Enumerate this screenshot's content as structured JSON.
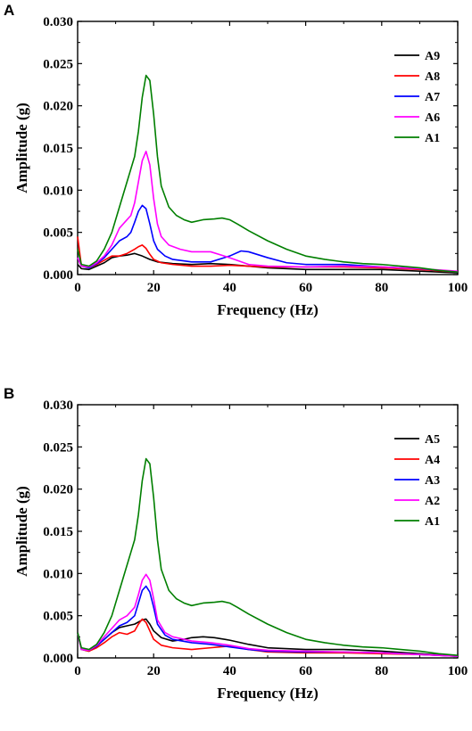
{
  "chart_data": [
    {
      "type": "line",
      "panel_label": "A",
      "xlabel": "Frequency  (Hz)",
      "ylabel": "Amplitude  (g)",
      "xlim": [
        0,
        100
      ],
      "ylim": [
        0,
        0.03
      ],
      "xticks": [
        0,
        20,
        40,
        60,
        80,
        100
      ],
      "yticks": [
        0.0,
        0.005,
        0.01,
        0.015,
        0.02,
        0.025,
        0.03
      ],
      "ytick_labels": [
        "0.000",
        "0.005",
        "0.010",
        "0.015",
        "0.020",
        "0.025",
        "0.030"
      ],
      "legend_position": "top-right",
      "series": [
        {
          "name": "A9",
          "color": "#000000",
          "x": [
            0,
            1,
            3,
            5,
            7,
            9,
            11,
            13,
            15,
            17,
            19,
            21,
            25,
            30,
            35,
            40,
            45,
            50,
            60,
            70,
            80,
            90,
            100
          ],
          "y": [
            0.0012,
            0.0007,
            0.0006,
            0.001,
            0.0014,
            0.002,
            0.0022,
            0.0023,
            0.0025,
            0.0022,
            0.0018,
            0.0015,
            0.0013,
            0.0012,
            0.0013,
            0.0012,
            0.001,
            0.0008,
            0.0006,
            0.0006,
            0.0006,
            0.0004,
            0.0002
          ]
        },
        {
          "name": "A8",
          "color": "#ff0000",
          "x": [
            0,
            1,
            3,
            5,
            7,
            9,
            11,
            13,
            15,
            16,
            17,
            18,
            19,
            20,
            22,
            25,
            30,
            35,
            40,
            45,
            50,
            60,
            70,
            80,
            90,
            100
          ],
          "y": [
            0.0045,
            0.001,
            0.0008,
            0.0012,
            0.0017,
            0.0022,
            0.0022,
            0.0025,
            0.003,
            0.0033,
            0.0035,
            0.0031,
            0.0024,
            0.0018,
            0.0014,
            0.0012,
            0.001,
            0.001,
            0.0011,
            0.001,
            0.0009,
            0.0009,
            0.0009,
            0.0008,
            0.0006,
            0.0003
          ]
        },
        {
          "name": "A7",
          "color": "#0000ff",
          "x": [
            0,
            1,
            3,
            5,
            7,
            9,
            11,
            13,
            14,
            15,
            16,
            17,
            18,
            19,
            20,
            21,
            23,
            25,
            30,
            35,
            40,
            43,
            45,
            50,
            55,
            60,
            70,
            80,
            90,
            100
          ],
          "y": [
            0.002,
            0.001,
            0.0008,
            0.0013,
            0.002,
            0.003,
            0.004,
            0.0045,
            0.005,
            0.0062,
            0.0075,
            0.0082,
            0.0078,
            0.006,
            0.004,
            0.003,
            0.0022,
            0.0018,
            0.0015,
            0.0015,
            0.0022,
            0.0028,
            0.0027,
            0.002,
            0.0014,
            0.0012,
            0.0012,
            0.0009,
            0.0007,
            0.0003
          ]
        },
        {
          "name": "A6",
          "color": "#ff00ff",
          "x": [
            0,
            1,
            3,
            5,
            7,
            9,
            11,
            13,
            14,
            15,
            16,
            17,
            18,
            19,
            20,
            21,
            22,
            24,
            27,
            30,
            35,
            40,
            45,
            50,
            60,
            70,
            80,
            90,
            100
          ],
          "y": [
            0.002,
            0.001,
            0.0009,
            0.0014,
            0.0022,
            0.0035,
            0.0055,
            0.0065,
            0.007,
            0.0085,
            0.011,
            0.0135,
            0.0146,
            0.013,
            0.009,
            0.006,
            0.0045,
            0.0035,
            0.003,
            0.0027,
            0.0027,
            0.002,
            0.0012,
            0.001,
            0.0009,
            0.001,
            0.0009,
            0.0007,
            0.0004
          ]
        },
        {
          "name": "A1",
          "color": "#007f00",
          "x": [
            0,
            1,
            3,
            5,
            7,
            9,
            11,
            13,
            14,
            15,
            16,
            17,
            18,
            19,
            20,
            21,
            22,
            24,
            26,
            28,
            30,
            33,
            36,
            38,
            40,
            42,
            45,
            50,
            55,
            60,
            65,
            70,
            75,
            80,
            85,
            90,
            95,
            100
          ],
          "y": [
            0.003,
            0.0012,
            0.001,
            0.0016,
            0.003,
            0.005,
            0.008,
            0.011,
            0.0125,
            0.014,
            0.017,
            0.021,
            0.0236,
            0.023,
            0.019,
            0.014,
            0.0105,
            0.008,
            0.007,
            0.0065,
            0.0062,
            0.0065,
            0.0066,
            0.0067,
            0.0065,
            0.006,
            0.0052,
            0.004,
            0.003,
            0.0022,
            0.0018,
            0.0015,
            0.0013,
            0.0012,
            0.001,
            0.0008,
            0.0005,
            0.0003
          ]
        }
      ]
    },
    {
      "type": "line",
      "panel_label": "B",
      "xlabel": "Frequency  (Hz)",
      "ylabel": "Amplitude  (g)",
      "xlim": [
        0,
        100
      ],
      "ylim": [
        0,
        0.03
      ],
      "xticks": [
        0,
        20,
        40,
        60,
        80,
        100
      ],
      "yticks": [
        0.0,
        0.005,
        0.01,
        0.015,
        0.02,
        0.025,
        0.03
      ],
      "ytick_labels": [
        "0.000",
        "0.005",
        "0.010",
        "0.015",
        "0.020",
        "0.025",
        "0.030"
      ],
      "legend_position": "top-right",
      "series": [
        {
          "name": "A5",
          "color": "#000000",
          "x": [
            0,
            1,
            3,
            5,
            7,
            9,
            11,
            13,
            15,
            17,
            18,
            19,
            20,
            22,
            25,
            28,
            30,
            33,
            36,
            40,
            45,
            50,
            60,
            70,
            80,
            90,
            100
          ],
          "y": [
            0.003,
            0.001,
            0.0008,
            0.0014,
            0.0022,
            0.003,
            0.0036,
            0.0038,
            0.004,
            0.0045,
            0.0046,
            0.004,
            0.0032,
            0.0024,
            0.002,
            0.0022,
            0.0024,
            0.0025,
            0.0024,
            0.0021,
            0.0016,
            0.0012,
            0.001,
            0.001,
            0.0008,
            0.0005,
            0.0002
          ]
        },
        {
          "name": "A4",
          "color": "#ff0000",
          "x": [
            0,
            1,
            3,
            5,
            7,
            9,
            11,
            13,
            15,
            16,
            17,
            18,
            19,
            20,
            22,
            25,
            30,
            35,
            40,
            45,
            50,
            60,
            70,
            80,
            90,
            100
          ],
          "y": [
            0.003,
            0.001,
            0.0008,
            0.0012,
            0.0018,
            0.0025,
            0.003,
            0.0028,
            0.0032,
            0.004,
            0.0046,
            0.0042,
            0.0032,
            0.0022,
            0.0015,
            0.0012,
            0.001,
            0.0012,
            0.0014,
            0.001,
            0.0007,
            0.0006,
            0.0006,
            0.0005,
            0.0004,
            0.0002
          ]
        },
        {
          "name": "A3",
          "color": "#0000ff",
          "x": [
            0,
            1,
            3,
            5,
            7,
            9,
            11,
            13,
            15,
            16,
            17,
            18,
            19,
            20,
            21,
            23,
            25,
            30,
            35,
            40,
            45,
            50,
            60,
            70,
            80,
            90,
            100
          ],
          "y": [
            0.003,
            0.001,
            0.0009,
            0.0014,
            0.0022,
            0.003,
            0.0038,
            0.0042,
            0.005,
            0.0065,
            0.008,
            0.0085,
            0.0078,
            0.006,
            0.004,
            0.0027,
            0.0022,
            0.0018,
            0.0016,
            0.0013,
            0.001,
            0.0008,
            0.0007,
            0.0007,
            0.0006,
            0.0004,
            0.0002
          ]
        },
        {
          "name": "A2",
          "color": "#ff00ff",
          "x": [
            0,
            1,
            3,
            5,
            7,
            9,
            11,
            13,
            15,
            16,
            17,
            18,
            19,
            20,
            21,
            23,
            25,
            30,
            35,
            40,
            45,
            50,
            60,
            70,
            80,
            90,
            100
          ],
          "y": [
            0.003,
            0.001,
            0.0009,
            0.0015,
            0.0025,
            0.0035,
            0.0045,
            0.005,
            0.006,
            0.0075,
            0.0092,
            0.0099,
            0.0092,
            0.007,
            0.0045,
            0.003,
            0.0025,
            0.002,
            0.0018,
            0.0015,
            0.0011,
            0.0009,
            0.0008,
            0.0007,
            0.0006,
            0.0004,
            0.0002
          ]
        },
        {
          "name": "A1",
          "color": "#007f00",
          "x": [
            0,
            1,
            3,
            5,
            7,
            9,
            11,
            13,
            14,
            15,
            16,
            17,
            18,
            19,
            20,
            21,
            22,
            24,
            26,
            28,
            30,
            33,
            36,
            38,
            40,
            42,
            45,
            50,
            55,
            60,
            65,
            70,
            75,
            80,
            85,
            90,
            95,
            100
          ],
          "y": [
            0.003,
            0.0012,
            0.001,
            0.0016,
            0.003,
            0.005,
            0.008,
            0.011,
            0.0125,
            0.014,
            0.017,
            0.021,
            0.0236,
            0.023,
            0.019,
            0.014,
            0.0105,
            0.008,
            0.007,
            0.0065,
            0.0062,
            0.0065,
            0.0066,
            0.0067,
            0.0065,
            0.006,
            0.0052,
            0.004,
            0.003,
            0.0022,
            0.0018,
            0.0015,
            0.0013,
            0.0012,
            0.001,
            0.0008,
            0.0005,
            0.0003
          ]
        }
      ]
    }
  ]
}
